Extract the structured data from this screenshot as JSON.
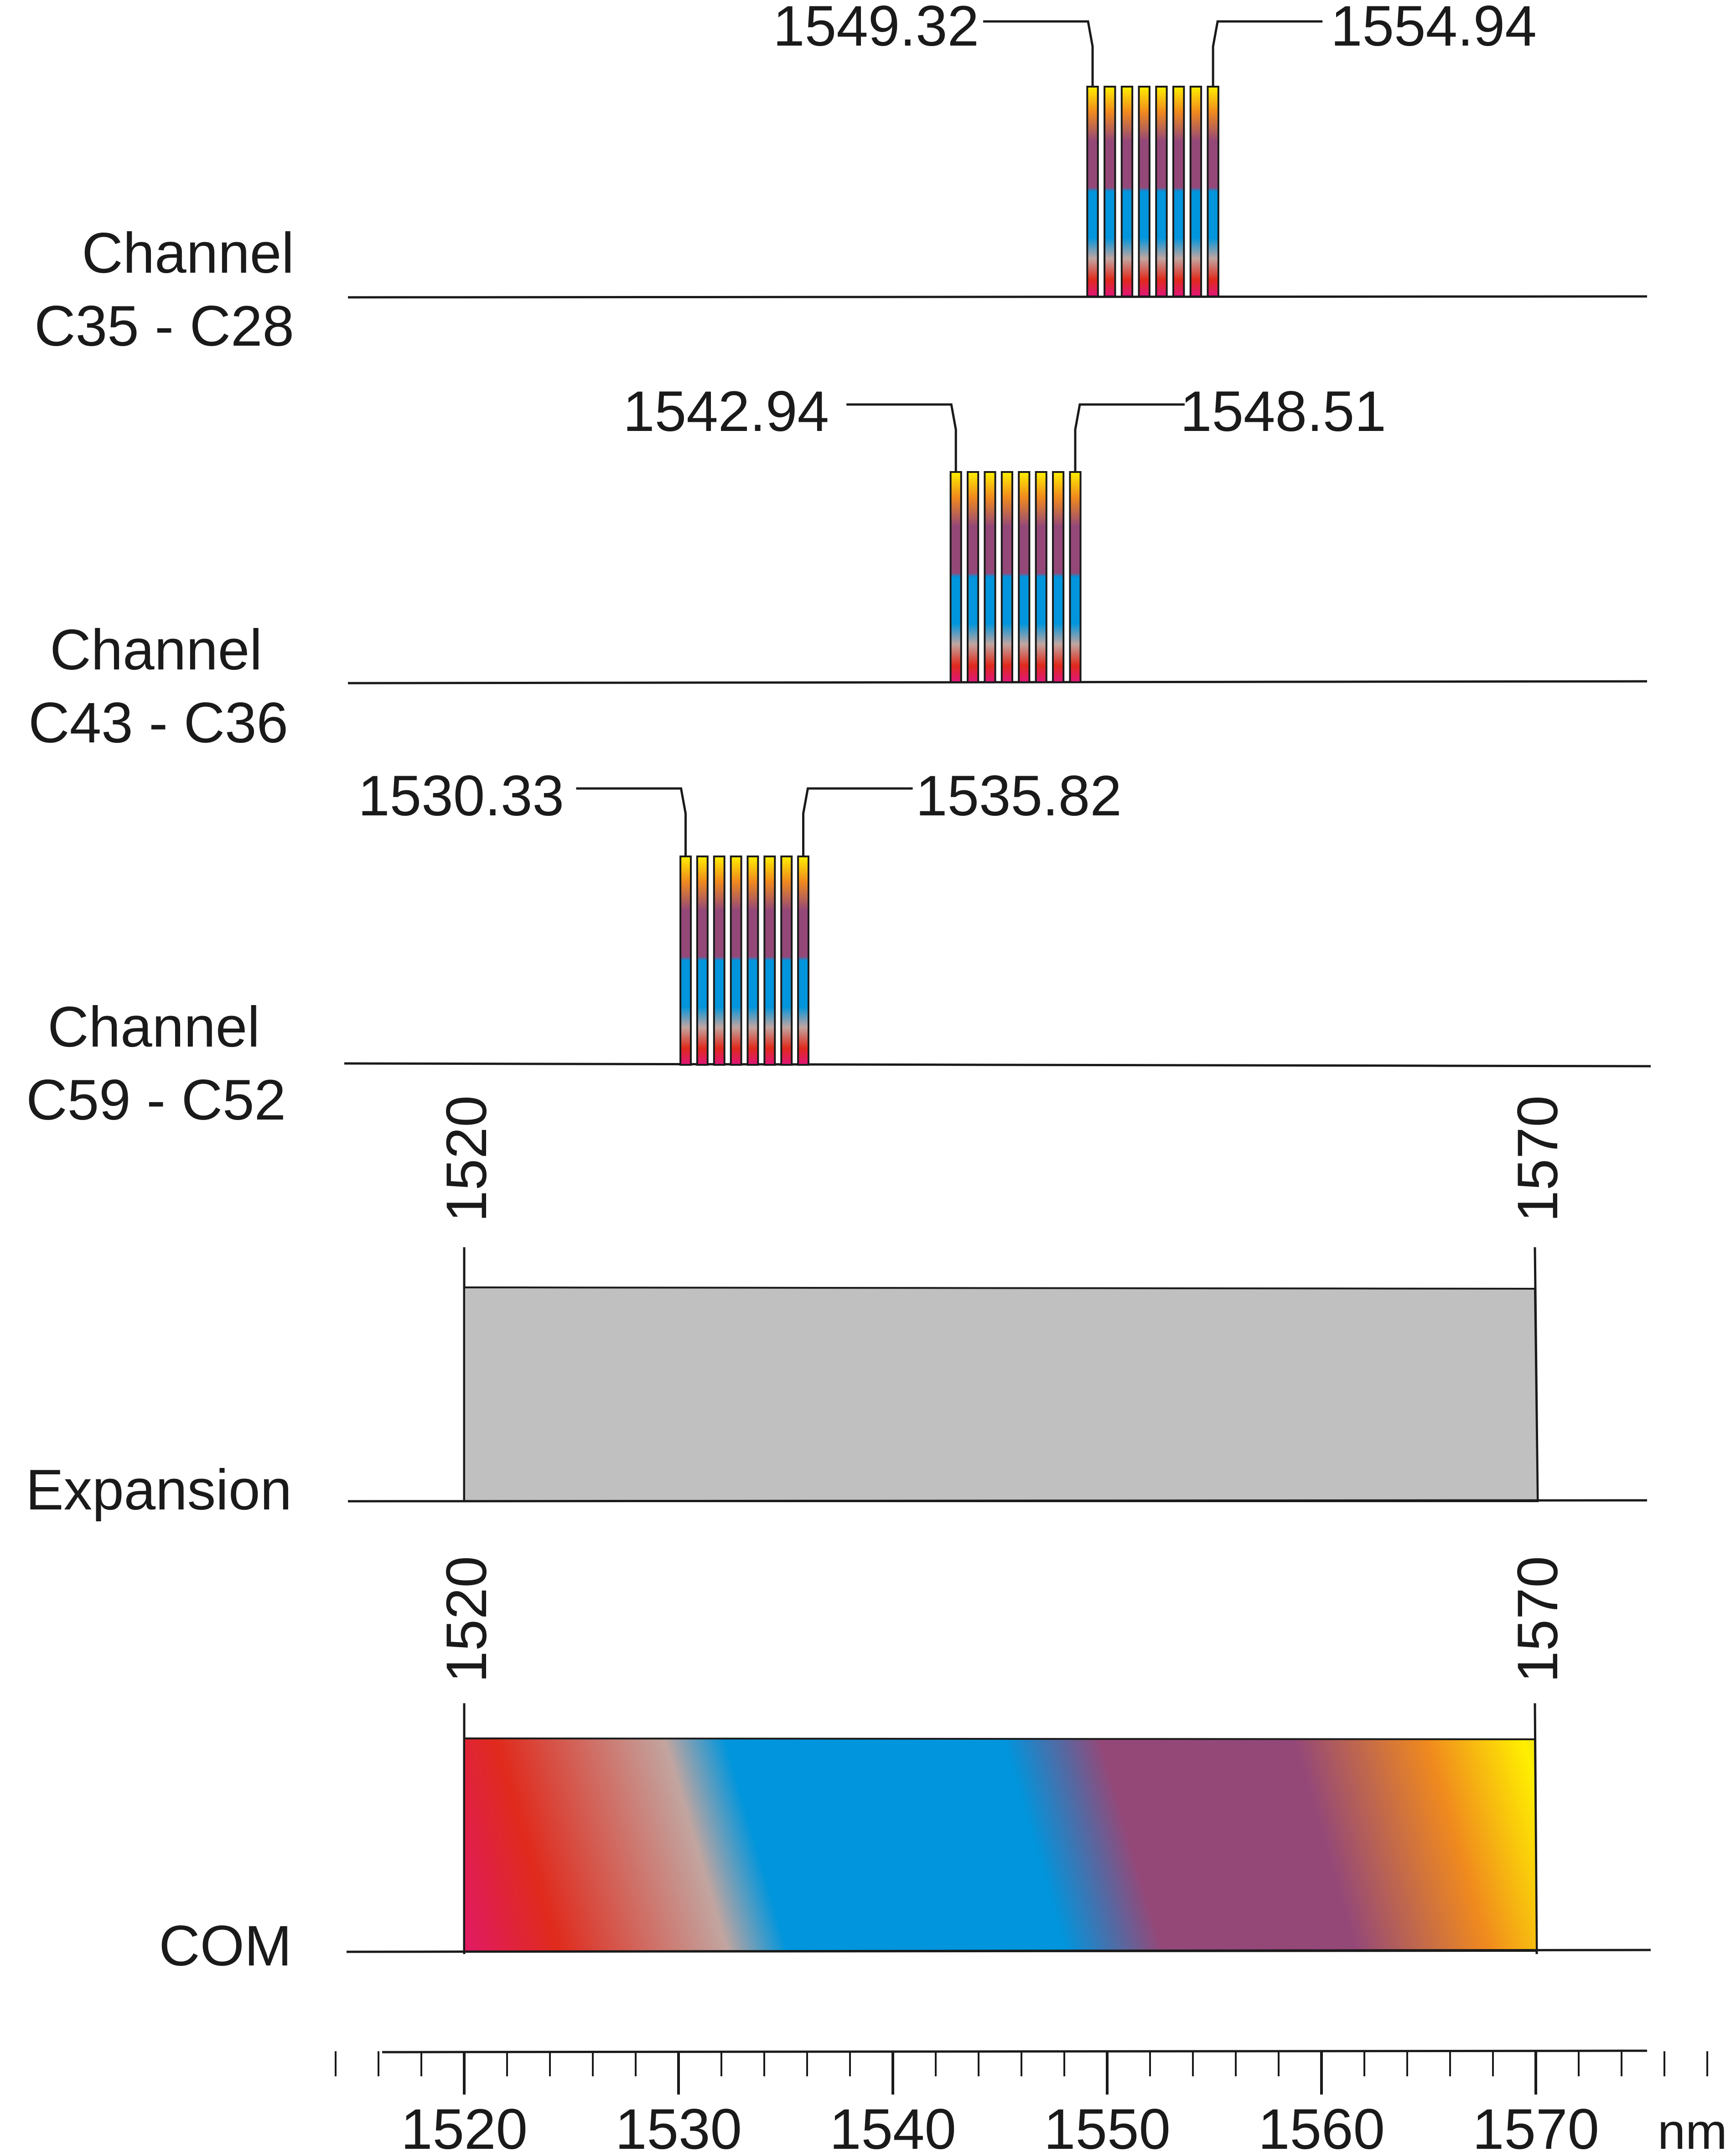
{
  "units": "nm",
  "axis": {
    "min": 1520,
    "max": 1570,
    "major_step": 10,
    "minor_step": 2,
    "tick_labels": [
      "1520",
      "1530",
      "1540",
      "1550",
      "1560",
      "1570"
    ],
    "unit_label": "nm"
  },
  "channel_groups": [
    {
      "label_line1": "Channel",
      "label_line2": "C35 - C28",
      "start": 1549.32,
      "end": 1554.94,
      "start_label": "1549.32",
      "end_label": "1554.94",
      "count": 8
    },
    {
      "label_line1": "Channel",
      "label_line2": "C43 - C36",
      "start": 1542.94,
      "end": 1548.51,
      "start_label": "1542.94",
      "end_label": "1548.51",
      "count": 8
    },
    {
      "label_line1": "Channel",
      "label_line2": "C59 - C52",
      "start": 1530.33,
      "end": 1535.82,
      "start_label": "1530.33",
      "end_label": "1535.82",
      "count": 8
    }
  ],
  "expansion": {
    "label": "Expansion",
    "start": 1520,
    "end": 1570,
    "start_label": "1520",
    "end_label": "1570",
    "fill_color": "#c0c0c0"
  },
  "com": {
    "label": "COM",
    "start": 1520,
    "end": 1570,
    "start_label": "1520",
    "end_label": "1570",
    "gradient_colors": [
      "#e0157a",
      "#e02a1c",
      "#c2a5a0",
      "#0095dc",
      "#0095dc",
      "#944878",
      "#944878",
      "#f08a1e",
      "#fff000",
      "#a89e70"
    ]
  },
  "colors": {
    "line": "#1a1a1a",
    "channel_stripes": [
      "#fff000",
      "#f08a1e",
      "#944878",
      "#944878",
      "#0095dc",
      "#0095dc",
      "#c2a5a0",
      "#e02a1c",
      "#e0157a"
    ]
  }
}
